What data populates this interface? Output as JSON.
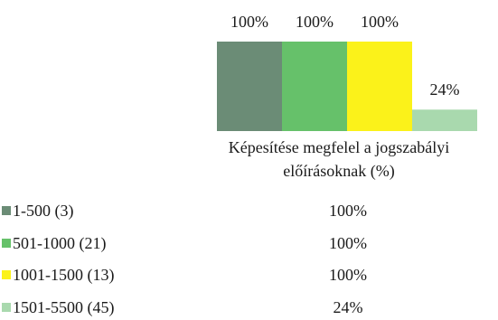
{
  "chart_data": {
    "type": "bar",
    "categories": [
      "Képesítése megfelel a jogszabályi előírásoknak (%)"
    ],
    "category_label_lines": [
      "Képesítése megfelel a jogszabályi",
      "előírásoknak (%)"
    ],
    "ylim": [
      0,
      100
    ],
    "series": [
      {
        "name": "1-500 (3)",
        "values": [
          100
        ],
        "label": "100%",
        "color": "#6b8c76"
      },
      {
        "name": "501-1000 (21)",
        "values": [
          100
        ],
        "label": "100%",
        "color": "#66c16a"
      },
      {
        "name": "1001-1500 (13)",
        "values": [
          100
        ],
        "label": "100%",
        "color": "#fbf21a"
      },
      {
        "name": "1501-5500 (45)",
        "values": [
          24
        ],
        "label": "24%",
        "color": "#a9d9ae"
      }
    ],
    "table": {
      "rows": [
        {
          "series": "1-500 (3)",
          "value": "100%"
        },
        {
          "series": "501-1000 (21)",
          "value": "100%"
        },
        {
          "series": "1001-1500 (13)",
          "value": "100%"
        },
        {
          "series": "1501-5500 (45)",
          "value": "24%"
        }
      ]
    }
  }
}
